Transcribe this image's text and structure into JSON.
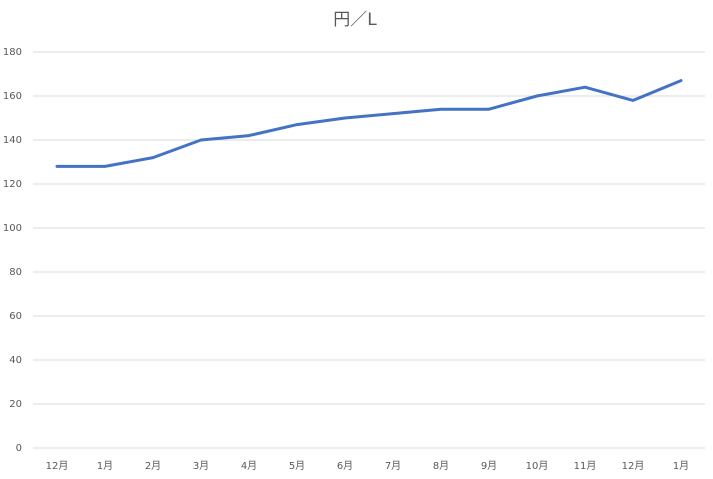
{
  "chart_data": {
    "type": "line",
    "title": "円／L",
    "categories": [
      "12月",
      "1月",
      "2月",
      "3月",
      "4月",
      "5月",
      "6月",
      "7月",
      "8月",
      "9月",
      "10月",
      "11月",
      "12月",
      "1月"
    ],
    "series": [
      {
        "color": "#4472c4",
        "values": [
          128,
          128,
          132,
          140,
          142,
          147,
          150,
          152,
          154,
          154,
          160,
          164,
          158,
          167
        ]
      }
    ],
    "ylim": [
      0,
      180
    ],
    "yticks": [
      0,
      20,
      40,
      60,
      80,
      100,
      120,
      140,
      160,
      180
    ],
    "grid": true
  }
}
